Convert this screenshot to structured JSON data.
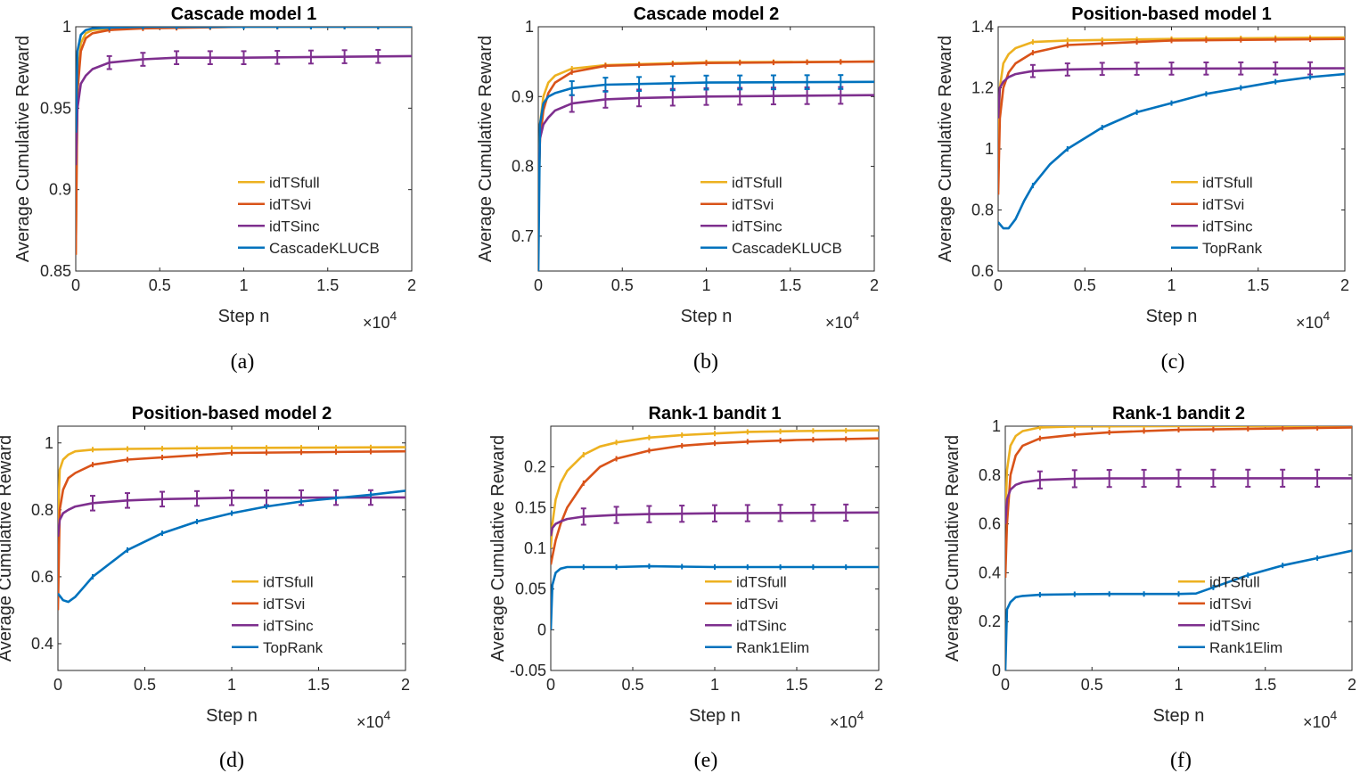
{
  "colors": {
    "idTSfull": "#EDB120",
    "idTSvi": "#D95319",
    "idTSinc": "#7E2F8E",
    "baseline": "#0072BD"
  },
  "chart_data": [
    {
      "type": "line",
      "title": "Cascade model 1",
      "caption": "(a)",
      "xlabel": "Step n",
      "ylabel": "Average Cumulative Reward",
      "xlim": [
        0,
        20000
      ],
      "ylim": [
        0.85,
        1.0
      ],
      "xticks": [
        0,
        5000,
        10000,
        15000,
        20000
      ],
      "xtick_labels": [
        "0",
        "0.5",
        "1",
        "1.5",
        "2"
      ],
      "x_multiplier_label": "×10",
      "x_multiplier_exp": "4",
      "yticks": [
        0.85,
        0.9,
        0.95,
        1.0
      ],
      "ytick_labels": [
        "0.85",
        "0.9",
        "0.95",
        "1"
      ],
      "series": [
        {
          "name": "idTSfull",
          "colorKey": "idTSfull",
          "x": [
            0,
            100,
            300,
            600,
            1000,
            2000,
            4000,
            10000,
            20000
          ],
          "y": [
            0.86,
            0.965,
            0.99,
            0.996,
            0.998,
            0.999,
            0.9995,
            1.0,
            1.0
          ],
          "errors": false
        },
        {
          "name": "idTSvi",
          "colorKey": "idTSvi",
          "x": [
            0,
            100,
            300,
            600,
            1000,
            2000,
            4000,
            10000,
            20000
          ],
          "y": [
            0.86,
            0.96,
            0.985,
            0.993,
            0.996,
            0.998,
            0.999,
            1.0,
            1.0
          ],
          "errors": false
        },
        {
          "name": "idTSinc",
          "colorKey": "idTSinc",
          "x": [
            0,
            100,
            300,
            600,
            1000,
            2000,
            4000,
            6000,
            10000,
            20000
          ],
          "y": [
            0.915,
            0.95,
            0.965,
            0.97,
            0.974,
            0.978,
            0.98,
            0.981,
            0.981,
            0.982
          ],
          "errors": true,
          "err": 0.004
        },
        {
          "name": "CascadeKLUCB",
          "colorKey": "baseline",
          "x": [
            0,
            100,
            300,
            600,
            1000,
            2000,
            4000,
            10000,
            20000
          ],
          "y": [
            0.935,
            0.985,
            0.995,
            0.998,
            0.999,
            0.9995,
            1.0,
            1.0,
            1.0
          ],
          "errors": false
        }
      ]
    },
    {
      "type": "line",
      "title": "Cascade model 2",
      "caption": "(b)",
      "xlabel": "Step n",
      "ylabel": "Average Cumulative Reward",
      "xlim": [
        0,
        20000
      ],
      "ylim": [
        0.65,
        1.0
      ],
      "xticks": [
        0,
        5000,
        10000,
        15000,
        20000
      ],
      "xtick_labels": [
        "0",
        "0.5",
        "1",
        "1.5",
        "2"
      ],
      "x_multiplier_label": "×10",
      "x_multiplier_exp": "4",
      "yticks": [
        0.7,
        0.8,
        0.9,
        1.0
      ],
      "ytick_labels": [
        "0.7",
        "0.8",
        "0.9",
        "1"
      ],
      "series": [
        {
          "name": "idTSfull",
          "colorKey": "idTSfull",
          "x": [
            0,
            100,
            300,
            600,
            1000,
            2000,
            4000,
            10000,
            20000
          ],
          "y": [
            0.7,
            0.86,
            0.9,
            0.92,
            0.93,
            0.94,
            0.945,
            0.949,
            0.95
          ],
          "errors": false
        },
        {
          "name": "idTSvi",
          "colorKey": "idTSvi",
          "x": [
            0,
            100,
            300,
            600,
            1000,
            2000,
            4000,
            10000,
            20000
          ],
          "y": [
            0.74,
            0.84,
            0.88,
            0.905,
            0.92,
            0.935,
            0.944,
            0.948,
            0.95
          ],
          "errors": false
        },
        {
          "name": "idTSinc",
          "colorKey": "idTSinc",
          "x": [
            0,
            100,
            300,
            600,
            1000,
            2000,
            4000,
            6000,
            10000,
            20000
          ],
          "y": [
            0.76,
            0.84,
            0.86,
            0.87,
            0.88,
            0.89,
            0.896,
            0.898,
            0.9,
            0.902
          ],
          "errors": true,
          "err": 0.012
        },
        {
          "name": "CascadeKLUCB",
          "colorKey": "baseline",
          "x": [
            0,
            100,
            300,
            600,
            1000,
            2000,
            4000,
            10000,
            20000
          ],
          "y": [
            0.65,
            0.86,
            0.89,
            0.9,
            0.905,
            0.912,
            0.917,
            0.92,
            0.921
          ],
          "errors": true,
          "err": 0.01
        }
      ]
    },
    {
      "type": "line",
      "title": "Position-based model 1",
      "caption": "(c)",
      "xlabel": "Step n",
      "ylabel": "Average Cumulative Reward",
      "xlim": [
        0,
        20000
      ],
      "ylim": [
        0.6,
        1.4
      ],
      "xticks": [
        0,
        5000,
        10000,
        15000,
        20000
      ],
      "xtick_labels": [
        "0",
        "0.5",
        "1",
        "1.5",
        "2"
      ],
      "x_multiplier_label": "×10",
      "x_multiplier_exp": "4",
      "yticks": [
        0.6,
        0.8,
        1.0,
        1.2,
        1.4
      ],
      "ytick_labels": [
        "0.6",
        "0.8",
        "1",
        "1.2",
        "1.4"
      ],
      "series": [
        {
          "name": "idTSfull",
          "colorKey": "idTSfull",
          "x": [
            0,
            100,
            300,
            600,
            1000,
            2000,
            4000,
            10000,
            20000
          ],
          "y": [
            1.0,
            1.2,
            1.28,
            1.31,
            1.33,
            1.35,
            1.355,
            1.36,
            1.365
          ],
          "errors": false
        },
        {
          "name": "idTSvi",
          "colorKey": "idTSvi",
          "x": [
            0,
            100,
            300,
            600,
            1000,
            2000,
            4000,
            10000,
            20000
          ],
          "y": [
            0.85,
            1.1,
            1.2,
            1.25,
            1.28,
            1.315,
            1.34,
            1.355,
            1.36
          ],
          "errors": false
        },
        {
          "name": "idTSinc",
          "colorKey": "idTSinc",
          "x": [
            0,
            100,
            300,
            600,
            1000,
            2000,
            4000,
            6000,
            10000,
            20000
          ],
          "y": [
            1.1,
            1.2,
            1.22,
            1.235,
            1.245,
            1.255,
            1.26,
            1.262,
            1.263,
            1.264
          ],
          "errors": true,
          "err": 0.02
        },
        {
          "name": "TopRank",
          "colorKey": "baseline",
          "x": [
            0,
            300,
            600,
            1000,
            1500,
            2000,
            3000,
            4000,
            6000,
            8000,
            10000,
            12000,
            14000,
            16000,
            18000,
            20000
          ],
          "y": [
            0.76,
            0.74,
            0.74,
            0.77,
            0.83,
            0.88,
            0.95,
            1.0,
            1.07,
            1.12,
            1.15,
            1.18,
            1.2,
            1.22,
            1.235,
            1.245
          ],
          "errors": false
        }
      ]
    },
    {
      "type": "line",
      "title": "Position-based model 2",
      "caption": "(d)",
      "xlabel": "Step n",
      "ylabel": "Average Cumulative Reward",
      "xlim": [
        0,
        20000
      ],
      "ylim": [
        0.32,
        1.05
      ],
      "xticks": [
        0,
        5000,
        10000,
        15000,
        20000
      ],
      "xtick_labels": [
        "0",
        "0.5",
        "1",
        "1.5",
        "2"
      ],
      "x_multiplier_label": "×10",
      "x_multiplier_exp": "4",
      "yticks": [
        0.4,
        0.6,
        0.8,
        1.0
      ],
      "ytick_labels": [
        "0.4",
        "0.6",
        "0.8",
        "1"
      ],
      "series": [
        {
          "name": "idTSfull",
          "colorKey": "idTSfull",
          "x": [
            0,
            100,
            300,
            600,
            1000,
            2000,
            4000,
            10000,
            20000
          ],
          "y": [
            0.75,
            0.92,
            0.95,
            0.965,
            0.975,
            0.98,
            0.982,
            0.985,
            0.987
          ],
          "errors": false
        },
        {
          "name": "idTSvi",
          "colorKey": "idTSvi",
          "x": [
            0,
            100,
            300,
            600,
            1000,
            2000,
            4000,
            10000,
            20000
          ],
          "y": [
            0.5,
            0.8,
            0.86,
            0.895,
            0.91,
            0.935,
            0.95,
            0.97,
            0.975
          ],
          "errors": false
        },
        {
          "name": "idTSinc",
          "colorKey": "idTSinc",
          "x": [
            0,
            100,
            300,
            600,
            1000,
            2000,
            4000,
            6000,
            10000,
            20000
          ],
          "y": [
            0.72,
            0.77,
            0.79,
            0.8,
            0.81,
            0.82,
            0.828,
            0.832,
            0.836,
            0.837
          ],
          "errors": true,
          "err": 0.022
        },
        {
          "name": "TopRank",
          "colorKey": "baseline",
          "x": [
            0,
            300,
            600,
            1000,
            1500,
            2000,
            3000,
            4000,
            6000,
            8000,
            10000,
            12000,
            14000,
            16000,
            18000,
            20000
          ],
          "y": [
            0.55,
            0.53,
            0.525,
            0.54,
            0.57,
            0.6,
            0.64,
            0.68,
            0.73,
            0.765,
            0.79,
            0.81,
            0.825,
            0.835,
            0.845,
            0.857
          ],
          "errors": false
        }
      ]
    },
    {
      "type": "line",
      "title": "Rank-1 bandit 1",
      "caption": "(e)",
      "xlabel": "Step n",
      "ylabel": "Average Cumulative Reward",
      "xlim": [
        0,
        20000
      ],
      "ylim": [
        -0.05,
        0.25
      ],
      "xticks": [
        0,
        5000,
        10000,
        15000,
        20000
      ],
      "xtick_labels": [
        "0",
        "0.5",
        "1",
        "1.5",
        "2"
      ],
      "x_multiplier_label": "×10",
      "x_multiplier_exp": "4",
      "yticks": [
        -0.05,
        0,
        0.05,
        0.1,
        0.15,
        0.2
      ],
      "ytick_labels": [
        "-0.05",
        "0",
        "0.05",
        "0.1",
        "0.15",
        "0.2"
      ],
      "series": [
        {
          "name": "idTSfull",
          "colorKey": "idTSfull",
          "x": [
            0,
            100,
            300,
            600,
            1000,
            2000,
            3000,
            4000,
            6000,
            8000,
            10000,
            12000,
            15000,
            20000
          ],
          "y": [
            0.1,
            0.13,
            0.16,
            0.18,
            0.195,
            0.215,
            0.225,
            0.23,
            0.236,
            0.239,
            0.241,
            0.243,
            0.244,
            0.245
          ],
          "errors": false
        },
        {
          "name": "idTSvi",
          "colorKey": "idTSvi",
          "x": [
            0,
            100,
            300,
            600,
            1000,
            2000,
            3000,
            4000,
            6000,
            8000,
            10000,
            12000,
            15000,
            20000
          ],
          "y": [
            0.08,
            0.09,
            0.11,
            0.13,
            0.15,
            0.18,
            0.2,
            0.21,
            0.22,
            0.226,
            0.229,
            0.231,
            0.233,
            0.235
          ],
          "errors": false
        },
        {
          "name": "idTSinc",
          "colorKey": "idTSinc",
          "x": [
            0,
            100,
            300,
            600,
            1000,
            2000,
            4000,
            6000,
            10000,
            20000
          ],
          "y": [
            0.115,
            0.125,
            0.13,
            0.133,
            0.136,
            0.139,
            0.141,
            0.142,
            0.143,
            0.144
          ],
          "errors": true,
          "err": 0.01
        },
        {
          "name": "Rank1Elim",
          "colorKey": "baseline",
          "x": [
            0,
            100,
            300,
            600,
            1000,
            2000,
            4000,
            6000,
            10000,
            20000
          ],
          "y": [
            0.0,
            0.055,
            0.07,
            0.075,
            0.077,
            0.077,
            0.077,
            0.078,
            0.077,
            0.077
          ],
          "errors": false
        }
      ]
    },
    {
      "type": "line",
      "title": "Rank-1 bandit 2",
      "caption": "(f)",
      "xlabel": "Step n",
      "ylabel": "Average Cumulative Reward",
      "xlim": [
        0,
        20000
      ],
      "ylim": [
        0,
        1.0
      ],
      "xticks": [
        0,
        5000,
        10000,
        15000,
        20000
      ],
      "xtick_labels": [
        "0",
        "0.5",
        "1",
        "1.5",
        "2"
      ],
      "x_multiplier_label": "×10",
      "x_multiplier_exp": "4",
      "yticks": [
        0,
        0.2,
        0.4,
        0.6,
        0.8,
        1.0
      ],
      "ytick_labels": [
        "0",
        "0.2",
        "0.4",
        "0.6",
        "0.8",
        "1"
      ],
      "series": [
        {
          "name": "idTSfull",
          "colorKey": "idTSfull",
          "x": [
            0,
            100,
            300,
            600,
            1000,
            2000,
            4000,
            10000,
            20000
          ],
          "y": [
            0.6,
            0.82,
            0.92,
            0.96,
            0.98,
            0.995,
            0.999,
            1.0,
            1.0
          ],
          "errors": false
        },
        {
          "name": "idTSvi",
          "colorKey": "idTSvi",
          "x": [
            0,
            100,
            300,
            600,
            1000,
            2000,
            4000,
            6000,
            10000,
            20000
          ],
          "y": [
            0.38,
            0.6,
            0.8,
            0.88,
            0.92,
            0.95,
            0.965,
            0.975,
            0.985,
            0.995
          ],
          "errors": false
        },
        {
          "name": "idTSinc",
          "colorKey": "idTSinc",
          "x": [
            0,
            100,
            300,
            600,
            1000,
            2000,
            4000,
            6000,
            10000,
            20000
          ],
          "y": [
            0.6,
            0.7,
            0.74,
            0.76,
            0.77,
            0.78,
            0.785,
            0.786,
            0.787,
            0.787
          ],
          "errors": true,
          "err": 0.035
        },
        {
          "name": "Rank1Elim",
          "colorKey": "baseline",
          "x": [
            0,
            100,
            300,
            600,
            1000,
            2000,
            4000,
            6000,
            8000,
            10000,
            11000,
            12000,
            14000,
            16000,
            18000,
            20000
          ],
          "y": [
            0,
            0.25,
            0.28,
            0.3,
            0.305,
            0.31,
            0.312,
            0.313,
            0.313,
            0.313,
            0.315,
            0.34,
            0.39,
            0.43,
            0.46,
            0.49
          ],
          "errors": false
        }
      ]
    }
  ]
}
